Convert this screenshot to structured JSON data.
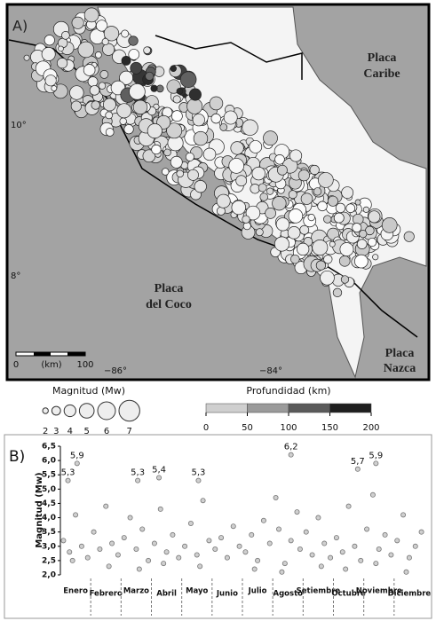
{
  "map": {
    "panel_label": "A)",
    "caribe": [
      "Placa",
      "Caribe"
    ],
    "coco": [
      "Placa",
      "del Coco"
    ],
    "nazca": [
      "Placa",
      "Nazca"
    ],
    "lat_labels": [
      "10°",
      "8°"
    ],
    "lon_labels": [
      "−86°",
      "−84°"
    ],
    "scale": {
      "start": "0",
      "unit": "(km)",
      "end": "100"
    }
  },
  "legend": {
    "magnitude_title": "Magnitud (Mw)",
    "magnitudes": [
      2,
      3,
      4,
      5,
      6,
      7
    ],
    "depth_title": "Profundidad (km)",
    "depth_ticks": [
      0,
      50,
      100,
      150,
      200
    ]
  },
  "chart_data": {
    "type": "scatter",
    "panel_label": "B)",
    "y_label": "Magnitud (Mw)",
    "categories": [
      "Enero",
      "Febrero",
      "Marzo",
      "Abril",
      "Mayo",
      "Junio",
      "Julio",
      "Agosto",
      "Setiembre",
      "Octubre",
      "Noviembre",
      "Diciembre"
    ],
    "xlim": [
      0,
      12
    ],
    "ylim": [
      2.0,
      6.5
    ],
    "yticks": [
      {
        "value": 2.0,
        "label": "2,0"
      },
      {
        "value": 2.5,
        "label": "2,5"
      },
      {
        "value": 3.0,
        "label": "3,0"
      },
      {
        "value": 3.5,
        "label": "3,5"
      },
      {
        "value": 4.0,
        "label": "4,0"
      },
      {
        "value": 4.5,
        "label": "4,5"
      },
      {
        "value": 5.0,
        "label": "5,0"
      },
      {
        "value": 5.5,
        "label": "5,5"
      },
      {
        "value": 6.0,
        "label": "6,0"
      },
      {
        "value": 6.5,
        "label": "6,5"
      }
    ],
    "color": "#cfcfcf",
    "x": [
      0.1,
      0.3,
      0.5,
      0.7,
      0.9,
      1.1,
      1.3,
      1.5,
      1.7,
      1.9,
      2.1,
      2.3,
      2.5,
      2.7,
      2.9,
      3.1,
      3.3,
      3.5,
      3.7,
      3.9,
      4.1,
      4.3,
      4.5,
      4.7,
      4.9,
      5.1,
      5.3,
      5.5,
      5.7,
      5.9,
      6.1,
      6.3,
      6.5,
      6.7,
      6.9,
      7.1,
      7.2,
      7.4,
      7.6,
      7.8,
      7.9,
      8.1,
      8.3,
      8.5,
      8.7,
      8.9,
      9.1,
      9.3,
      9.5,
      9.7,
      9.9,
      10.1,
      10.3,
      10.5,
      10.7,
      10.9,
      11.1,
      11.3,
      11.5,
      11.7,
      11.9,
      0.4,
      1.6,
      2.6,
      3.4,
      4.6,
      6.4,
      7.3,
      8.6,
      9.4,
      10.4,
      11.4
    ],
    "values": [
      3.2,
      2.8,
      4.1,
      3.0,
      2.6,
      3.5,
      2.9,
      4.4,
      3.1,
      2.7,
      3.3,
      4.0,
      2.9,
      3.6,
      2.5,
      3.1,
      4.3,
      2.8,
      3.4,
      2.6,
      3.0,
      3.8,
      2.7,
      4.6,
      3.2,
      2.9,
      3.3,
      2.6,
      3.7,
      3.0,
      2.8,
      3.4,
      2.5,
      3.9,
      3.1,
      4.7,
      3.6,
      2.4,
      3.2,
      4.2,
      2.9,
      3.5,
      2.7,
      4.0,
      3.1,
      2.6,
      3.3,
      2.8,
      4.4,
      3.0,
      2.5,
      3.6,
      4.8,
      2.9,
      3.4,
      2.7,
      3.2,
      4.1,
      2.6,
      3.0,
      3.5,
      2.5,
      2.3,
      2.2,
      2.4,
      2.3,
      2.2,
      2.1,
      2.3,
      2.2,
      2.4,
      2.1
    ],
    "annotated_points": [
      {
        "x": 0.25,
        "value": 5.3,
        "value_label": "5,3"
      },
      {
        "x": 0.55,
        "value": 5.9,
        "value_label": "5,9"
      },
      {
        "x": 2.55,
        "value": 5.3,
        "value_label": "5,3"
      },
      {
        "x": 3.25,
        "value": 5.4,
        "value_label": "5,4"
      },
      {
        "x": 4.55,
        "value": 5.3,
        "value_label": "5,3"
      },
      {
        "x": 7.6,
        "value": 6.2,
        "value_label": "6,2"
      },
      {
        "x": 9.8,
        "value": 5.7,
        "value_label": "5,7"
      },
      {
        "x": 10.4,
        "value": 5.9,
        "value_label": "5,9"
      }
    ]
  }
}
